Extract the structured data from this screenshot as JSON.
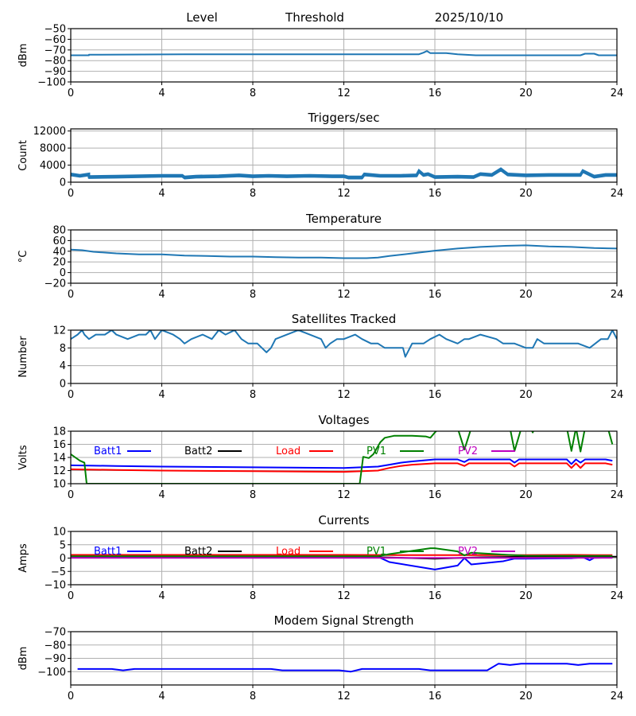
{
  "figure": {
    "header": {
      "level_label": "Level",
      "threshold_label": "Threshold",
      "date": "2025/10/10"
    }
  },
  "colors": {
    "default_line": "#1f77b4",
    "batt1": "#0000ff",
    "batt2": "#000000",
    "load": "#ff0000",
    "pv1": "#008000",
    "pv2": "#bf00bf",
    "grid": "#b0b0b0"
  },
  "chart_data": [
    {
      "id": "level",
      "type": "line",
      "title": "",
      "xlabel": "",
      "ylabel": "dBm",
      "xlim": [
        0,
        24
      ],
      "ylim": [
        -100,
        -50
      ],
      "xticks": [
        0,
        4,
        8,
        12,
        16,
        20,
        24
      ],
      "yticks": [
        -100,
        -90,
        -80,
        -70,
        -60,
        -50
      ],
      "ytick_labels": [
        "−100",
        "−90",
        "−80",
        "−70",
        "−60",
        "−50"
      ],
      "grid": true,
      "series": [
        {
          "name": "Level",
          "color": "#1f77b4",
          "x": [
            0,
            0.8,
            0.8,
            5,
            10,
            13,
            15.3,
            15.5,
            15.65,
            15.8,
            16.5,
            17,
            17.8,
            20,
            22.4,
            22.6,
            23,
            23.2,
            24
          ],
          "y": [
            -75,
            -75,
            -74.5,
            -74,
            -74,
            -74,
            -74,
            -72.5,
            -71,
            -73,
            -73,
            -74,
            -75,
            -75,
            -75,
            -73.5,
            -73.5,
            -75,
            -75
          ]
        }
      ]
    },
    {
      "id": "triggers",
      "type": "line",
      "title": "Triggers/sec",
      "xlabel": "",
      "ylabel": "Count",
      "xlim": [
        0,
        24
      ],
      "ylim": [
        0,
        12500
      ],
      "xticks": [
        0,
        4,
        8,
        12,
        16,
        20,
        24
      ],
      "yticks": [
        0,
        4000,
        8000,
        12000
      ],
      "ytick_labels": [
        "0",
        "4000",
        "8000",
        "12000"
      ],
      "grid": true,
      "series": [
        {
          "name": "Triggers",
          "color": "#1f77b4",
          "x": [
            0,
            0.4,
            0.8,
            0.8,
            2,
            4,
            4.9,
            5,
            5.5,
            6.5,
            7.4,
            8,
            8.7,
            9.5,
            10.5,
            11.5,
            12,
            12.2,
            12.8,
            12.9,
            13.6,
            14.5,
            15.2,
            15.3,
            15.5,
            15.7,
            16,
            17,
            17.7,
            18,
            18.5,
            18.9,
            19.2,
            20,
            21,
            22.4,
            22.5,
            23,
            23.5,
            24
          ],
          "y": [
            1600,
            1300,
            1600,
            1000,
            1100,
            1300,
            1300,
            900,
            1100,
            1200,
            1400,
            1200,
            1300,
            1200,
            1300,
            1200,
            1200,
            900,
            900,
            1600,
            1300,
            1300,
            1400,
            2400,
            1500,
            1700,
            1000,
            1100,
            1000,
            1700,
            1500,
            2800,
            1600,
            1400,
            1500,
            1500,
            2400,
            1100,
            1500,
            1500
          ]
        }
      ]
    },
    {
      "id": "temperature",
      "type": "line",
      "title": "Temperature",
      "xlabel": "",
      "ylabel": "°C",
      "xlim": [
        0,
        24
      ],
      "ylim": [
        -20,
        80
      ],
      "xticks": [
        0,
        4,
        8,
        12,
        16,
        20,
        24
      ],
      "yticks": [
        -20,
        0,
        20,
        40,
        60,
        80
      ],
      "ytick_labels": [
        "−20",
        "0",
        "20",
        "40",
        "60",
        "80"
      ],
      "grid": true,
      "series": [
        {
          "name": "Temperature",
          "color": "#1f77b4",
          "x": [
            0,
            0.5,
            1,
            2,
            3,
            4,
            5,
            6,
            7,
            8,
            9,
            10,
            11,
            12,
            13,
            13.5,
            14,
            15,
            16,
            17,
            18,
            19,
            20,
            21,
            22,
            23,
            24
          ],
          "y": [
            43,
            42,
            39,
            36,
            34,
            34,
            32,
            31,
            30,
            30,
            29,
            28,
            28,
            27,
            27,
            28,
            31,
            36,
            41,
            45,
            48,
            50,
            51,
            49,
            48,
            46,
            45
          ]
        }
      ]
    },
    {
      "id": "satellites",
      "type": "line",
      "title": "Satellites Tracked",
      "xlabel": "",
      "ylabel": "Number",
      "xlim": [
        0,
        24
      ],
      "ylim": [
        0,
        12
      ],
      "xticks": [
        0,
        4,
        8,
        12,
        16,
        20,
        24
      ],
      "yticks": [
        0,
        4,
        8,
        12
      ],
      "ytick_labels": [
        "0",
        "4",
        "8",
        "12"
      ],
      "grid": true,
      "series": [
        {
          "name": "Satellites",
          "color": "#1f77b4",
          "x": [
            0,
            0.3,
            0.5,
            0.6,
            0.8,
            1.1,
            1.5,
            1.8,
            2.0,
            2.5,
            3.0,
            3.3,
            3.5,
            3.7,
            4.0,
            4.5,
            4.8,
            5.0,
            5.3,
            5.8,
            6.2,
            6.5,
            6.8,
            7.2,
            7.5,
            7.8,
            8.2,
            8.6,
            8.8,
            9.0,
            9.5,
            10.0,
            10.5,
            11.0,
            11.2,
            11.4,
            11.7,
            12.0,
            12.5,
            12.8,
            13.2,
            13.5,
            13.8,
            14.2,
            14.6,
            14.7,
            14.8,
            15.0,
            15.5,
            15.8,
            16.2,
            16.5,
            17.0,
            17.3,
            17.5,
            18.0,
            18.7,
            19.0,
            19.5,
            20.0,
            20.3,
            20.5,
            20.8,
            21.5,
            22.0,
            22.3,
            22.8,
            23.3,
            23.6,
            23.8,
            24.0
          ],
          "y": [
            10,
            11,
            12,
            11,
            10,
            11,
            11,
            12,
            11,
            10,
            11,
            11,
            12,
            10,
            12,
            11,
            10,
            9,
            10,
            11,
            10,
            12,
            11,
            12,
            10,
            9,
            9,
            7,
            8,
            10,
            11,
            12,
            11,
            10,
            8,
            9,
            10,
            10,
            11,
            10,
            9,
            9,
            8,
            8,
            8,
            6,
            7,
            9,
            9,
            10,
            11,
            10,
            9,
            10,
            10,
            11,
            10,
            9,
            9,
            8,
            8,
            10,
            9,
            9,
            9,
            9,
            8,
            10,
            10,
            12,
            10
          ]
        }
      ]
    },
    {
      "id": "voltages",
      "type": "line",
      "title": "Voltages",
      "xlabel": "",
      "ylabel": "Volts",
      "xlim": [
        0,
        24
      ],
      "ylim": [
        10,
        18
      ],
      "xticks": [
        0,
        4,
        8,
        12,
        16,
        20,
        24
      ],
      "yticks": [
        10,
        12,
        14,
        16,
        18
      ],
      "ytick_labels": [
        "10",
        "12",
        "14",
        "16",
        "18"
      ],
      "grid": true,
      "legend": [
        "Batt1",
        "Batt2",
        "Load",
        "PV1",
        "PV2"
      ],
      "legend_placement": "top inside, single row",
      "series": [
        {
          "name": "Batt1",
          "color": "#0000ff",
          "x": [
            0,
            2,
            4,
            8,
            12,
            13.5,
            14,
            14.5,
            15,
            16,
            17,
            17.3,
            17.5,
            19,
            19.3,
            19.5,
            19.7,
            21.8,
            22,
            22.2,
            22.4,
            22.6,
            22.8,
            23.5,
            23.8
          ],
          "y": [
            12.8,
            12.7,
            12.6,
            12.5,
            12.4,
            12.6,
            12.9,
            13.2,
            13.4,
            13.7,
            13.7,
            13.3,
            13.7,
            13.7,
            13.7,
            13.2,
            13.7,
            13.7,
            13.0,
            13.7,
            13.2,
            13.7,
            13.7,
            13.7,
            13.5
          ]
        },
        {
          "name": "Load",
          "color": "#ff0000",
          "x": [
            0,
            2,
            4,
            8,
            12,
            13.5,
            14,
            14.5,
            15,
            16,
            17,
            17.3,
            17.5,
            19,
            19.3,
            19.5,
            19.7,
            21.8,
            22,
            22.2,
            22.4,
            22.6,
            22.8,
            23.5,
            23.8
          ],
          "y": [
            12.2,
            12.1,
            12.0,
            11.9,
            11.8,
            12.0,
            12.4,
            12.7,
            12.9,
            13.1,
            13.1,
            12.7,
            13.1,
            13.1,
            13.1,
            12.6,
            13.1,
            13.1,
            12.4,
            13.1,
            12.4,
            13.1,
            13.1,
            13.1,
            12.9
          ]
        },
        {
          "name": "PV1",
          "color": "#008000",
          "x": [
            0,
            0.2,
            0.4,
            0.6,
            0.7,
            12.7,
            12.85,
            13.1,
            13.3,
            13.6,
            13.8,
            14.2,
            15,
            15.6,
            15.8,
            16,
            16.2,
            17,
            17.3,
            17.6,
            19.3,
            19.5,
            19.8,
            20.2,
            20.3,
            20.4,
            21.8,
            22.0,
            22.2,
            22.4,
            22.6,
            22.8,
            23.6,
            23.8
          ],
          "y": [
            14.5,
            14.0,
            13.5,
            13.2,
            10,
            10,
            14.1,
            13.9,
            14.5,
            16.3,
            17.0,
            17.3,
            17.3,
            17.2,
            17.0,
            17.8,
            18.5,
            18.5,
            15.2,
            18.5,
            18.5,
            15.0,
            18.5,
            18.5,
            17.8,
            18.5,
            18.5,
            15.0,
            18.5,
            14.9,
            18.5,
            18.5,
            18.5,
            16.0
          ]
        }
      ]
    },
    {
      "id": "currents",
      "type": "line",
      "title": "Currents",
      "xlabel": "",
      "ylabel": "Amps",
      "xlim": [
        0,
        24
      ],
      "ylim": [
        -10,
        10
      ],
      "xticks": [
        0,
        4,
        8,
        12,
        16,
        20,
        24
      ],
      "yticks": [
        -10,
        -5,
        0,
        5,
        10
      ],
      "ytick_labels": [
        "−10",
        "−5",
        "0",
        "5",
        "10"
      ],
      "grid": true,
      "legend": [
        "Batt1",
        "Batt2",
        "Load",
        "PV1",
        "PV2"
      ],
      "legend_placement": "top inside, single row",
      "series": [
        {
          "name": "Batt1",
          "color": "#0000ff",
          "x": [
            0,
            4,
            8,
            12,
            13.5,
            14,
            16,
            17,
            17.3,
            17.6,
            19,
            19.5,
            20,
            22,
            22.5,
            22.8,
            23,
            23.8
          ],
          "y": [
            0.5,
            0.5,
            0.5,
            0.5,
            0.5,
            -1.5,
            -4.3,
            -2.8,
            0,
            -2.4,
            -1.2,
            -0.2,
            -0.2,
            -0.1,
            0.3,
            -0.8,
            0.1,
            0.2
          ]
        },
        {
          "name": "Batt2",
          "color": "#000000",
          "x": [
            0,
            4,
            8,
            12,
            14,
            16,
            18,
            20,
            24
          ],
          "y": [
            0.7,
            0.6,
            0.6,
            0.6,
            0.2,
            -0.2,
            0.3,
            0.5,
            0.5
          ]
        },
        {
          "name": "Load",
          "color": "#ff0000",
          "x": [
            0,
            4,
            8,
            12,
            16,
            20,
            22,
            23,
            23.8
          ],
          "y": [
            1.2,
            1.2,
            1.2,
            1.2,
            1.1,
            1.1,
            1.2,
            1.1,
            1.1
          ]
        },
        {
          "name": "PV1",
          "color": "#008000",
          "x": [
            0,
            4,
            8,
            12,
            13.5,
            14,
            15.8,
            16,
            17,
            17.3,
            17.6,
            19,
            20,
            22,
            23.8
          ],
          "y": [
            0.7,
            0.7,
            0.7,
            0.7,
            0.7,
            1.5,
            3.7,
            3.7,
            2.5,
            1.0,
            2.0,
            1.3,
            0.9,
            0.8,
            0.8
          ]
        },
        {
          "name": "PV2",
          "color": "#bf00bf",
          "x": [
            0,
            4,
            8,
            12,
            16,
            20,
            23.8
          ],
          "y": [
            0.1,
            0.1,
            0.1,
            0.1,
            0.1,
            0.1,
            0.1
          ]
        }
      ]
    },
    {
      "id": "modem",
      "type": "line",
      "title": "Modem Signal Strength",
      "xlabel": "",
      "ylabel": "dBm",
      "xlim": [
        0,
        24
      ],
      "ylim": [
        -110,
        -70
      ],
      "xticks": [
        0,
        4,
        8,
        12,
        16,
        20,
        24
      ],
      "yticks": [
        -100,
        -90,
        -80,
        -70
      ],
      "ytick_labels": [
        "−100",
        "−90",
        "−80",
        "−70"
      ],
      "grid": true,
      "series": [
        {
          "name": "Modem",
          "color": "#0000ff",
          "x": [
            0.3,
            1.8,
            2.3,
            2.8,
            8.8,
            9.3,
            11.8,
            12.3,
            12.8,
            15.3,
            15.8,
            18.3,
            18.8,
            19.3,
            19.8,
            21.8,
            22.3,
            22.8,
            23.8
          ],
          "y": [
            -98,
            -98,
            -99,
            -98,
            -98,
            -99,
            -99,
            -100,
            -98,
            -98,
            -99,
            -99,
            -94,
            -95,
            -94,
            -94,
            -95,
            -94,
            -94
          ]
        }
      ]
    }
  ]
}
